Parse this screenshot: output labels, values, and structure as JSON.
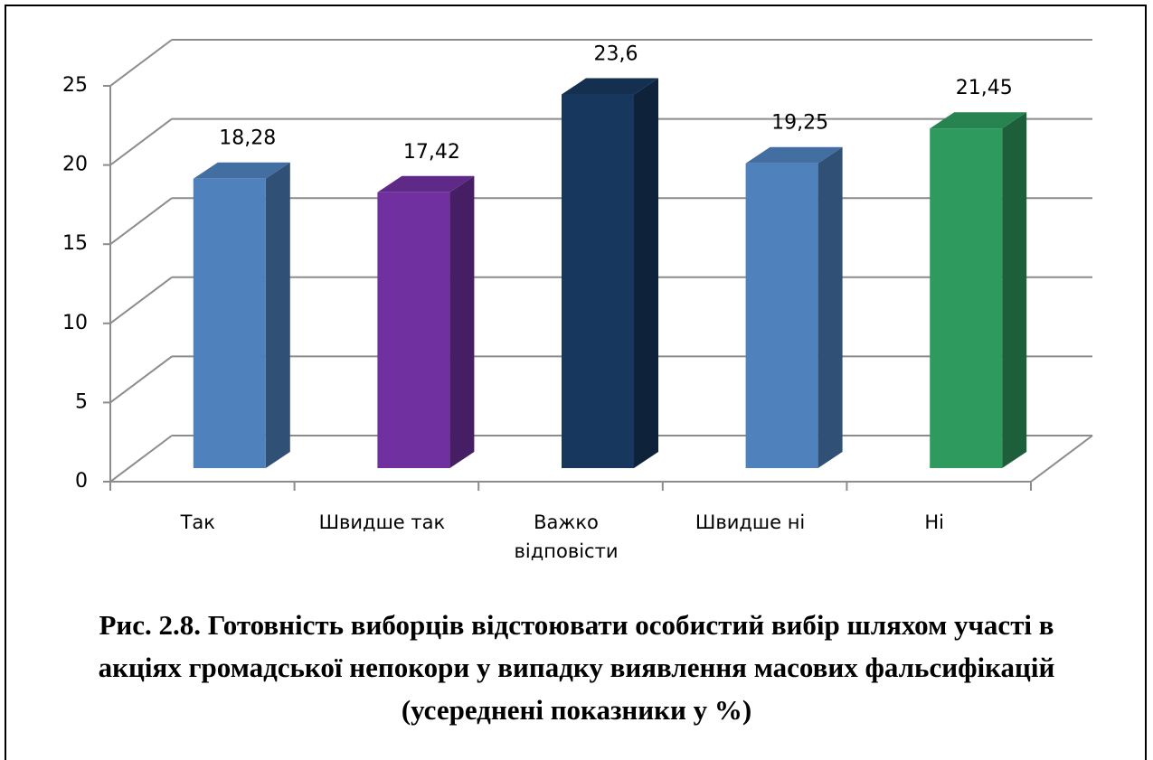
{
  "chart_data": {
    "type": "bar3d",
    "title": "Рис. 2.8. Готовність виборців відстоювати особистий вибір шляхом участі в акціях громадської непокори у випадку виявлення масових фальсифікацій (усереднені показники у %)",
    "categories": [
      "Так",
      "Швидше так",
      "Важко відповісти",
      "Швидше ні",
      "Ні"
    ],
    "values": [
      18.28,
      17.42,
      23.6,
      19.25,
      21.45
    ],
    "value_labels": [
      "18,28",
      "17,42",
      "23,6",
      "19,25",
      "21,45"
    ],
    "colors": [
      "#4f81bd",
      "#7030a0",
      "#17375e",
      "#4f81bd",
      "#2e9a5e"
    ],
    "ylim": [
      0,
      25
    ],
    "yticks": [
      0,
      5,
      10,
      15,
      20,
      25
    ],
    "grid": true
  }
}
